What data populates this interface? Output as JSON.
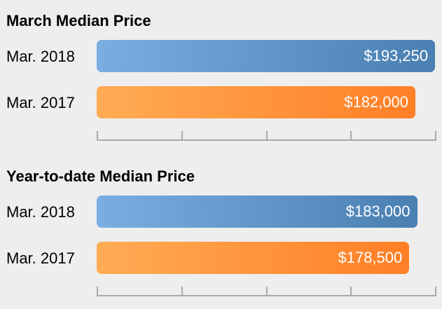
{
  "chart_data": [
    {
      "type": "bar",
      "orientation": "horizontal",
      "title": "March Median Price",
      "categories": [
        "Mar. 2018",
        "Mar. 2017"
      ],
      "values": [
        193250,
        182000
      ],
      "value_labels": [
        "$193,250",
        "$182,000"
      ],
      "colors": [
        "#4a7fb1",
        "#ff7f26"
      ],
      "xlim": [
        0,
        194000
      ],
      "grid": false,
      "axis_ticks": 5
    },
    {
      "type": "bar",
      "orientation": "horizontal",
      "title": "Year-to-date Median Price",
      "categories": [
        "Mar. 2018",
        "Mar. 2017"
      ],
      "values": [
        183000,
        178500
      ],
      "value_labels": [
        "$183,000",
        "$178,500"
      ],
      "colors": [
        "#4a7fb1",
        "#ff7f26"
      ],
      "xlim": [
        0,
        194000
      ],
      "grid": false,
      "axis_ticks": 5
    }
  ]
}
